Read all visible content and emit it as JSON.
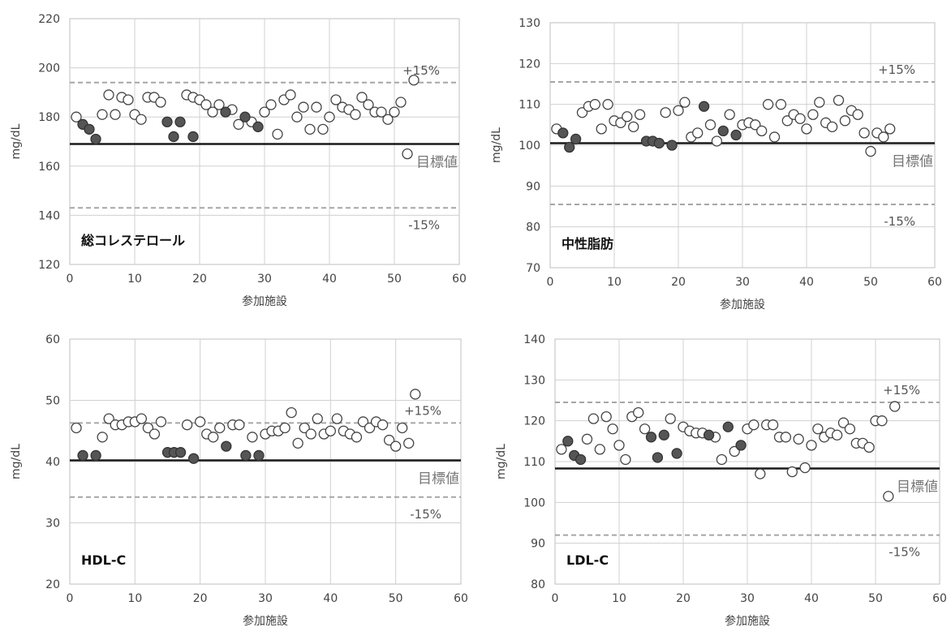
{
  "chart_data": [
    {
      "type": "scatter",
      "title": "総コレステロール",
      "xlabel": "参加施設",
      "ylabel": "mg/dL",
      "xlim": [
        0,
        60
      ],
      "ylim": [
        120,
        220
      ],
      "xticks": [
        "0",
        "10",
        "20",
        "30",
        "40",
        "50",
        "60"
      ],
      "yticks": [
        "120",
        "140",
        "160",
        "180",
        "200",
        "220"
      ],
      "target": 169,
      "upper": 194,
      "lower": 143,
      "upper_label": "+15%",
      "lower_label": "-15%",
      "target_label": "目標値",
      "grid": true,
      "series": [
        {
          "fill": "open",
          "points": [
            [
              1,
              180
            ],
            [
              5,
              181
            ],
            [
              6,
              189
            ],
            [
              7,
              181
            ],
            [
              8,
              188
            ],
            [
              9,
              187
            ],
            [
              10,
              181
            ],
            [
              11,
              179
            ],
            [
              12,
              188
            ],
            [
              13,
              188
            ],
            [
              14,
              186
            ],
            [
              18,
              189
            ],
            [
              19,
              188
            ],
            [
              20,
              187
            ],
            [
              21,
              185
            ],
            [
              22,
              182
            ],
            [
              23,
              185
            ],
            [
              25,
              183
            ],
            [
              26,
              177
            ],
            [
              28,
              178
            ],
            [
              30,
              182
            ],
            [
              31,
              185
            ],
            [
              32,
              173
            ],
            [
              33,
              187
            ],
            [
              34,
              189
            ],
            [
              35,
              180
            ],
            [
              36,
              184
            ],
            [
              37,
              175
            ],
            [
              38,
              184
            ],
            [
              39,
              175
            ],
            [
              40,
              180
            ],
            [
              41,
              187
            ],
            [
              42,
              184
            ],
            [
              43,
              183
            ],
            [
              44,
              181
            ],
            [
              45,
              188
            ],
            [
              46,
              185
            ],
            [
              47,
              182
            ],
            [
              48,
              182
            ],
            [
              49,
              179
            ],
            [
              50,
              182
            ],
            [
              51,
              186
            ],
            [
              52,
              165
            ],
            [
              53,
              195
            ]
          ]
        },
        {
          "fill": "filled",
          "points": [
            [
              2,
              177
            ],
            [
              3,
              175
            ],
            [
              4,
              171
            ],
            [
              15,
              178
            ],
            [
              16,
              172
            ],
            [
              17,
              178
            ],
            [
              19,
              172
            ],
            [
              24,
              182
            ],
            [
              27,
              180
            ],
            [
              29,
              176
            ]
          ]
        }
      ]
    },
    {
      "type": "scatter",
      "title": "中性脂肪",
      "xlabel": "参加施設",
      "ylabel": "mg/dL",
      "xlim": [
        0,
        60
      ],
      "ylim": [
        70,
        130
      ],
      "xticks": [
        "0",
        "10",
        "20",
        "30",
        "40",
        "50",
        "60"
      ],
      "yticks": [
        "70",
        "80",
        "90",
        "100",
        "110",
        "120",
        "130"
      ],
      "target": 100.5,
      "upper": 115.5,
      "lower": 85.5,
      "upper_label": "+15%",
      "lower_label": "-15%",
      "target_label": "目標値",
      "grid": true,
      "series": [
        {
          "fill": "open",
          "points": [
            [
              1,
              104
            ],
            [
              5,
              108
            ],
            [
              6,
              109.5
            ],
            [
              7,
              110
            ],
            [
              8,
              104
            ],
            [
              9,
              110
            ],
            [
              10,
              106
            ],
            [
              11,
              105.5
            ],
            [
              12,
              107
            ],
            [
              13,
              104.5
            ],
            [
              14,
              107.5
            ],
            [
              18,
              108
            ],
            [
              20,
              108.5
            ],
            [
              21,
              110.5
            ],
            [
              22,
              102
            ],
            [
              23,
              103
            ],
            [
              25,
              105
            ],
            [
              26,
              101
            ],
            [
              28,
              107.5
            ],
            [
              30,
              105
            ],
            [
              31,
              105.5
            ],
            [
              32,
              105
            ],
            [
              33,
              103.5
            ],
            [
              34,
              110
            ],
            [
              35,
              102
            ],
            [
              36,
              110
            ],
            [
              37,
              106
            ],
            [
              38,
              107.5
            ],
            [
              39,
              106.5
            ],
            [
              40,
              104
            ],
            [
              41,
              107.5
            ],
            [
              42,
              110.5
            ],
            [
              43,
              105.5
            ],
            [
              44,
              104.5
            ],
            [
              45,
              111
            ],
            [
              46,
              106
            ],
            [
              47,
              108.5
            ],
            [
              48,
              107.5
            ],
            [
              49,
              103
            ],
            [
              50,
              98.5
            ],
            [
              51,
              103
            ],
            [
              52,
              102
            ],
            [
              53,
              104
            ]
          ]
        },
        {
          "fill": "filled",
          "points": [
            [
              2,
              103
            ],
            [
              3,
              99.5
            ],
            [
              4,
              101.5
            ],
            [
              15,
              101
            ],
            [
              16,
              101
            ],
            [
              17,
              100.5
            ],
            [
              19,
              100
            ],
            [
              24,
              109.5
            ],
            [
              27,
              103.5
            ],
            [
              29,
              102.5
            ]
          ]
        }
      ]
    },
    {
      "type": "scatter",
      "title": "HDL-C",
      "xlabel": "参加施設",
      "ylabel": "mg/dL",
      "xlim": [
        0,
        60
      ],
      "ylim": [
        20,
        60
      ],
      "xticks": [
        "0",
        "10",
        "20",
        "30",
        "40",
        "50",
        "60"
      ],
      "yticks": [
        "20",
        "30",
        "40",
        "50",
        "60"
      ],
      "target": 40.2,
      "upper": 46.3,
      "lower": 34.2,
      "upper_label": "+15%",
      "lower_label": "-15%",
      "target_label": "目標値",
      "grid": true,
      "series": [
        {
          "fill": "open",
          "points": [
            [
              1,
              45.5
            ],
            [
              5,
              44
            ],
            [
              6,
              47
            ],
            [
              7,
              46
            ],
            [
              8,
              46
            ],
            [
              9,
              46.5
            ],
            [
              10,
              46.5
            ],
            [
              11,
              47
            ],
            [
              12,
              45.5
            ],
            [
              13,
              44.5
            ],
            [
              14,
              46.5
            ],
            [
              18,
              46
            ],
            [
              20,
              46.5
            ],
            [
              21,
              44.5
            ],
            [
              22,
              44
            ],
            [
              23,
              45.5
            ],
            [
              25,
              46
            ],
            [
              26,
              46
            ],
            [
              28,
              44
            ],
            [
              30,
              44.5
            ],
            [
              31,
              45
            ],
            [
              32,
              45
            ],
            [
              33,
              45.5
            ],
            [
              34,
              48
            ],
            [
              35,
              43
            ],
            [
              36,
              45.5
            ],
            [
              37,
              44.5
            ],
            [
              38,
              47
            ],
            [
              39,
              44.5
            ],
            [
              40,
              45
            ],
            [
              41,
              47
            ],
            [
              42,
              45
            ],
            [
              43,
              44.5
            ],
            [
              44,
              44
            ],
            [
              45,
              46.5
            ],
            [
              46,
              45.5
            ],
            [
              47,
              46.5
            ],
            [
              48,
              46
            ],
            [
              49,
              43.5
            ],
            [
              50,
              42.5
            ],
            [
              51,
              45.5
            ],
            [
              52,
              43
            ],
            [
              53,
              51
            ]
          ]
        },
        {
          "fill": "filled",
          "points": [
            [
              2,
              41
            ],
            [
              4,
              41
            ],
            [
              15,
              41.5
            ],
            [
              16,
              41.5
            ],
            [
              17,
              41.5
            ],
            [
              19,
              40.5
            ],
            [
              24,
              42.5
            ],
            [
              27,
              41
            ],
            [
              29,
              41
            ]
          ]
        }
      ]
    },
    {
      "type": "scatter",
      "title": "LDL-C",
      "xlabel": "参加施設",
      "ylabel": "mg/dL",
      "xlim": [
        0,
        60
      ],
      "ylim": [
        80,
        140
      ],
      "xticks": [
        "0",
        "10",
        "20",
        "30",
        "40",
        "50",
        "60"
      ],
      "yticks": [
        "80",
        "90",
        "100",
        "110",
        "120",
        "130",
        "140"
      ],
      "target": 108.3,
      "upper": 124.5,
      "lower": 92,
      "upper_label": "+15%",
      "lower_label": "-15%",
      "target_label": "目標値",
      "grid": true,
      "series": [
        {
          "fill": "open",
          "points": [
            [
              1,
              113
            ],
            [
              5,
              115.5
            ],
            [
              6,
              120.5
            ],
            [
              7,
              113
            ],
            [
              8,
              121
            ],
            [
              9,
              118
            ],
            [
              10,
              114
            ],
            [
              11,
              110.5
            ],
            [
              12,
              121
            ],
            [
              13,
              122
            ],
            [
              14,
              118
            ],
            [
              18,
              120.5
            ],
            [
              20,
              118.5
            ],
            [
              21,
              117.5
            ],
            [
              22,
              117
            ],
            [
              23,
              117
            ],
            [
              25,
              116
            ],
            [
              26,
              110.5
            ],
            [
              28,
              112.5
            ],
            [
              30,
              118
            ],
            [
              31,
              119
            ],
            [
              32,
              107
            ],
            [
              33,
              119
            ],
            [
              34,
              119
            ],
            [
              35,
              116
            ],
            [
              36,
              116
            ],
            [
              37,
              107.5
            ],
            [
              38,
              115.5
            ],
            [
              39,
              108.5
            ],
            [
              40,
              114
            ],
            [
              41,
              118
            ],
            [
              42,
              116
            ],
            [
              43,
              117
            ],
            [
              44,
              116.5
            ],
            [
              45,
              119.5
            ],
            [
              46,
              118
            ],
            [
              47,
              114.5
            ],
            [
              48,
              114.5
            ],
            [
              49,
              113.5
            ],
            [
              50,
              120
            ],
            [
              51,
              120
            ],
            [
              52,
              101.5
            ],
            [
              53,
              123.5
            ]
          ]
        },
        {
          "fill": "filled",
          "points": [
            [
              2,
              115
            ],
            [
              3,
              111.5
            ],
            [
              4,
              110.5
            ],
            [
              15,
              116
            ],
            [
              16,
              111
            ],
            [
              17,
              116.5
            ],
            [
              19,
              112
            ],
            [
              24,
              116.5
            ],
            [
              27,
              118.5
            ],
            [
              29,
              114
            ]
          ]
        }
      ]
    }
  ]
}
